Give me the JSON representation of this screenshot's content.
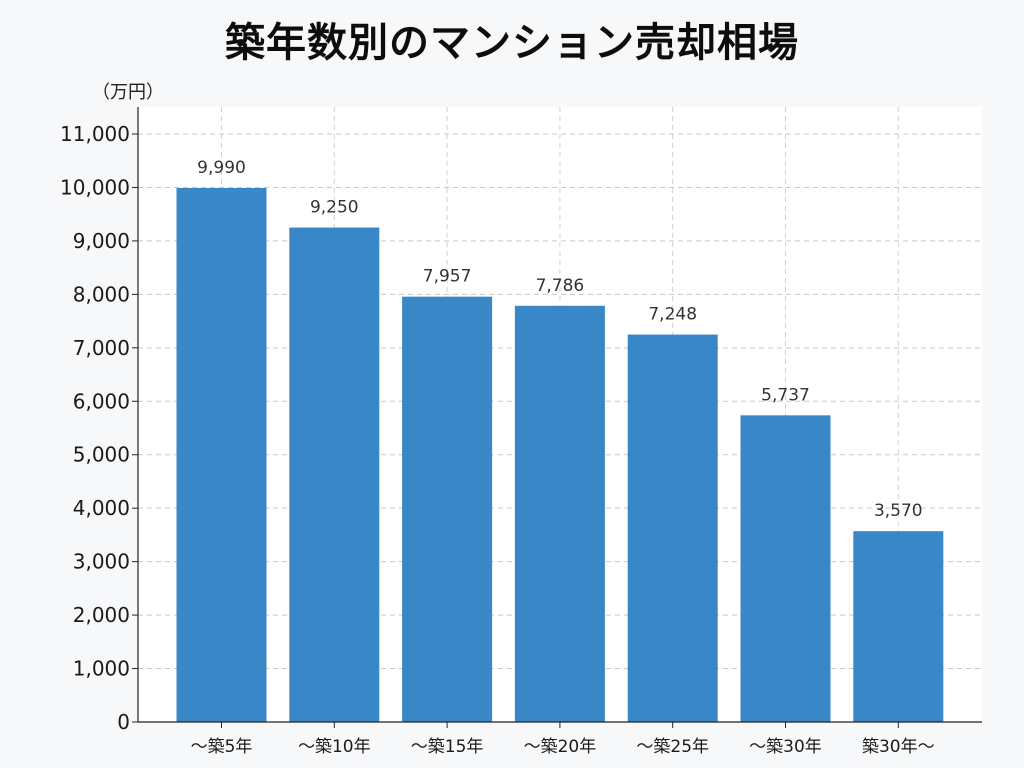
{
  "chart_data": {
    "type": "bar",
    "title": "築年数別のマンション売却相場",
    "unit_label": "（万円）",
    "categories": [
      "〜築5年",
      "〜築10年",
      "〜築15年",
      "〜築20年",
      "〜築25年",
      "〜築30年",
      "築30年〜"
    ],
    "values": [
      9990,
      9250,
      7957,
      7786,
      7248,
      5737,
      3570
    ],
    "value_labels": [
      "9,990",
      "9,250",
      "7,957",
      "7,786",
      "7,248",
      "5,737",
      "3,570"
    ],
    "ylim": [
      0,
      11000
    ],
    "yticks": [
      0,
      1000,
      2000,
      3000,
      4000,
      5000,
      6000,
      7000,
      8000,
      9000,
      10000,
      11000
    ],
    "ytick_labels": [
      "0",
      "1,000",
      "2,000",
      "3,000",
      "4,000",
      "5,000",
      "6,000",
      "7,000",
      "8,000",
      "9,000",
      "10,000",
      "11,000"
    ],
    "grid": true,
    "bar_color": "#3a87c8",
    "xlabel": "",
    "ylabel": ""
  }
}
